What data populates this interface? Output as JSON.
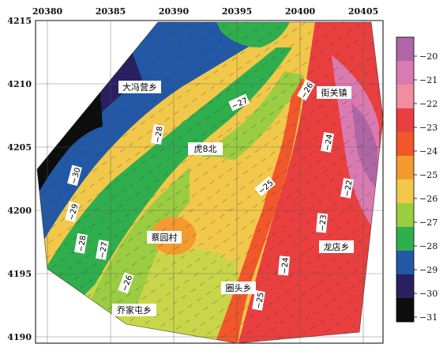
{
  "x_ticks": [
    "20380",
    "20385",
    "20390",
    "20395",
    "20400",
    "20405"
  ],
  "y_ticks": [
    "4215",
    "4210",
    "4205",
    "4200",
    "4195",
    "4190"
  ],
  "colorbar": {
    "ticks": [
      "−20",
      "−21",
      "−22",
      "−23",
      "−24",
      "−25",
      "−26",
      "−27",
      "−28",
      "−29",
      "−30",
      "−31"
    ],
    "colors": [
      "#b066a6",
      "#d97bb0",
      "#f08ea0",
      "#ea3f3f",
      "#f2562b",
      "#f59a2e",
      "#f2c84a",
      "#9acd42",
      "#2fae4e",
      "#2258a6",
      "#2a2060",
      "#0d0d0d"
    ]
  },
  "places": [
    {
      "id": "dafengying",
      "name": "大冯营乡"
    },
    {
      "id": "jieguanzhen",
      "name": "街关镇"
    },
    {
      "id": "hu8bei",
      "name": "虎8北"
    },
    {
      "id": "caiyuancun",
      "name": "蔡园村"
    },
    {
      "id": "longdianxiang",
      "name": "龙店乡"
    },
    {
      "id": "quantouxiang",
      "name": "圈头乡"
    },
    {
      "id": "qiaojiatunxiang",
      "name": "乔家屯乡"
    }
  ],
  "contours": [
    {
      "id": "c30",
      "text": "−30"
    },
    {
      "id": "c29",
      "text": "−29"
    },
    {
      "id": "c28a",
      "text": "−28"
    },
    {
      "id": "c28b",
      "text": "−28"
    },
    {
      "id": "c27a",
      "text": "−27"
    },
    {
      "id": "c27b",
      "text": "−27"
    },
    {
      "id": "c26a",
      "text": "−26"
    },
    {
      "id": "c26b",
      "text": "−26"
    },
    {
      "id": "c25a",
      "text": "−25"
    },
    {
      "id": "c25b",
      "text": "−25"
    },
    {
      "id": "c24a",
      "text": "−24"
    },
    {
      "id": "c24b",
      "text": "−24"
    },
    {
      "id": "c23",
      "text": "−23"
    },
    {
      "id": "c22",
      "text": "−22"
    }
  ]
}
